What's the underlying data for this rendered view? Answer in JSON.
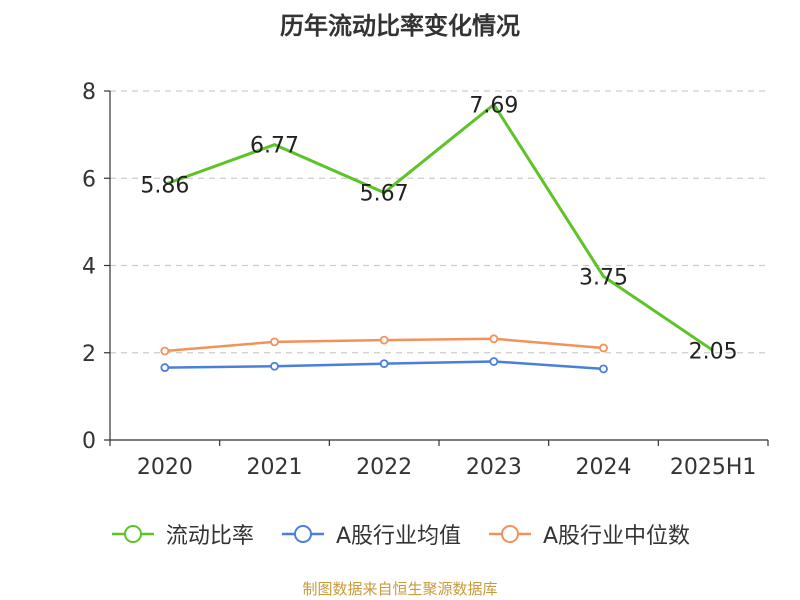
{
  "chart_data": {
    "type": "line",
    "title": "历年流动比率变化情况",
    "categories": [
      "2020",
      "2021",
      "2022",
      "2023",
      "2024",
      "2025H1"
    ],
    "y_ticks": [
      "0",
      "2",
      "4",
      "6",
      "8"
    ],
    "ylim": [
      0,
      8
    ],
    "grid": true,
    "legend_position": "bottom",
    "series": [
      {
        "name": "流动比率",
        "color": "#5cc427",
        "values": [
          5.86,
          6.77,
          5.67,
          7.69,
          3.75,
          2.05
        ],
        "labels": [
          "5.86",
          "6.77",
          "5.67",
          "7.69",
          "3.75",
          "2.05"
        ],
        "markers": false
      },
      {
        "name": "A股行业均值",
        "color": "#4a7fdc",
        "values": [
          1.66,
          1.69,
          1.75,
          1.8,
          1.63,
          null
        ],
        "markers": true
      },
      {
        "name": "A股行业中位数",
        "color": "#f3915a",
        "values": [
          2.04,
          2.25,
          2.29,
          2.32,
          2.11,
          null
        ],
        "markers": true
      }
    ],
    "source": "制图数据来自恒生聚源数据库"
  }
}
